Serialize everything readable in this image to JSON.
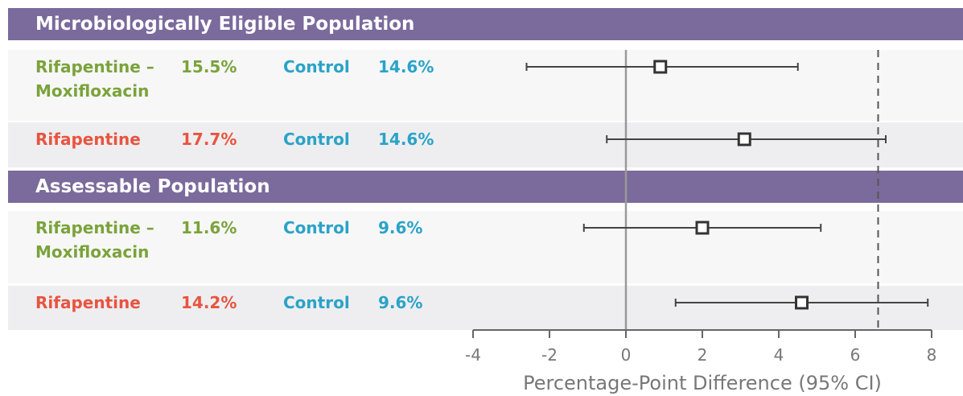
{
  "chart_data": {
    "type": "forest",
    "xlabel": "Percentage-Point Difference (95% CI)",
    "xlim": [
      -4,
      8
    ],
    "xticks": [
      -4,
      -2,
      0,
      2,
      4,
      6,
      8
    ],
    "zero_line": true,
    "margin": 6.6,
    "sections": [
      {
        "title": "Microbiologically Eligible Population",
        "rows": [
          {
            "arm": "Rifapentine – Moxifloxacin",
            "arm_color": "#7aa33a",
            "arm_value": 15.5,
            "arm_value_label": "15.5%",
            "control": "Control",
            "control_color": "#2aa3c8",
            "control_value": 14.6,
            "control_value_label": "14.6%",
            "estimate": 0.9,
            "ci": [
              -2.6,
              4.5
            ]
          },
          {
            "arm": "Rifapentine",
            "arm_color": "#e8543f",
            "arm_value": 17.7,
            "arm_value_label": "17.7%",
            "control": "Control",
            "control_color": "#2aa3c8",
            "control_value": 14.6,
            "control_value_label": "14.6%",
            "estimate": 3.1,
            "ci": [
              -0.5,
              6.8
            ]
          }
        ]
      },
      {
        "title": "Assessable Population",
        "rows": [
          {
            "arm": "Rifapentine – Moxifloxacin",
            "arm_color": "#7aa33a",
            "arm_value": 11.6,
            "arm_value_label": "11.6%",
            "control": "Control",
            "control_color": "#2aa3c8",
            "control_value": 9.6,
            "control_value_label": "9.6%",
            "estimate": 2.0,
            "ci": [
              -1.1,
              5.1
            ]
          },
          {
            "arm": "Rifapentine",
            "arm_color": "#e8543f",
            "arm_value": 14.2,
            "arm_value_label": "14.2%",
            "control": "Control",
            "control_color": "#2aa3c8",
            "control_value": 9.6,
            "control_value_label": "9.6%",
            "estimate": 4.6,
            "ci": [
              1.3,
              7.9
            ]
          }
        ]
      }
    ]
  }
}
